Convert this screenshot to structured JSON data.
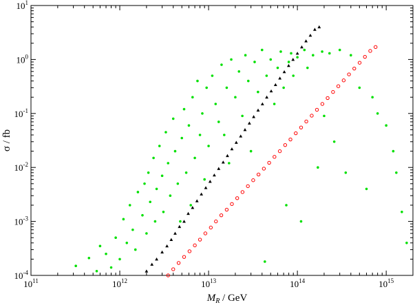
{
  "chart_data": {
    "type": "scatter",
    "title": "",
    "xlabel": "M_R / GeV",
    "xlabel_parts": {
      "symbol": "M",
      "subscript": "R",
      "unit": " / GeV"
    },
    "ylabel": "σ / fb",
    "xscale": "log",
    "yscale": "log",
    "xlim": [
      100000000000.0,
      2000000000000000.0
    ],
    "ylim": [
      0.0001,
      10
    ],
    "grid": false,
    "legend": null,
    "x_ticks": [
      {
        "value": 100000000000.0,
        "base": "10",
        "exp": "11"
      },
      {
        "value": 1000000000000.0,
        "base": "10",
        "exp": "12"
      },
      {
        "value": 10000000000000.0,
        "base": "10",
        "exp": "13"
      },
      {
        "value": 100000000000000.0,
        "base": "10",
        "exp": "14"
      },
      {
        "value": 1000000000000000.0,
        "base": "10",
        "exp": "15"
      }
    ],
    "y_ticks": [
      {
        "value": 0.0001,
        "base": "10",
        "exp": "-4"
      },
      {
        "value": 0.001,
        "base": "10",
        "exp": "-3"
      },
      {
        "value": 0.01,
        "base": "10",
        "exp": "-2"
      },
      {
        "value": 0.1,
        "base": "10",
        "exp": "-1"
      },
      {
        "value": 1.0,
        "base": "10",
        "exp": "0"
      },
      {
        "value": 10.0,
        "base": "10",
        "exp": "1"
      }
    ],
    "series": [
      {
        "marker": "filled-circle",
        "color": "#00e000",
        "points": [
          [
            320000000000.0,
            0.00015
          ],
          [
            450000000000.0,
            0.00021
          ],
          [
            550000000000.0,
            0.00012
          ],
          [
            600000000000.0,
            0.00035
          ],
          [
            700000000000.0,
            0.00025
          ],
          [
            800000000000.0,
            0.00014
          ],
          [
            900000000000.0,
            0.0005
          ],
          [
            1000000000000.0,
            0.0002
          ],
          [
            1100000000000.0,
            0.0011
          ],
          [
            1200000000000.0,
            0.0004
          ],
          [
            1300000000000.0,
            0.002
          ],
          [
            1400000000000.0,
            0.0007
          ],
          [
            1500000000000.0,
            0.0003
          ],
          [
            1600000000000.0,
            0.0035
          ],
          [
            1800000000000.0,
            0.0013
          ],
          [
            1900000000000.0,
            0.005
          ],
          [
            2000000000000.0,
            0.0006
          ],
          [
            2100000000000.0,
            0.008
          ],
          [
            2200000000000.0,
            0.0023
          ],
          [
            2400000000000.0,
            0.015
          ],
          [
            2500000000000.0,
            0.001
          ],
          [
            2600000000000.0,
            0.004
          ],
          [
            2800000000000.0,
            0.025
          ],
          [
            3000000000000.0,
            0.007
          ],
          [
            3100000000000.0,
            0.0015
          ],
          [
            3300000000000.0,
            0.045
          ],
          [
            3500000000000.0,
            0.012
          ],
          [
            3700000000000.0,
            0.003
          ],
          [
            4000000000000.0,
            0.08
          ],
          [
            4200000000000.0,
            0.02
          ],
          [
            4500000000000.0,
            0.005
          ],
          [
            4800000000000.0,
            0.001
          ],
          [
            5000000000000.0,
            0.035
          ],
          [
            5300000000000.0,
            0.12
          ],
          [
            5600000000000.0,
            0.008
          ],
          [
            6000000000000.0,
            0.06
          ],
          [
            6300000000000.0,
            0.002
          ],
          [
            6600000000000.0,
            0.2
          ],
          [
            7000000000000.0,
            0.015
          ],
          [
            7500000000000.0,
            0.4
          ],
          [
            8000000000000.0,
            0.04
          ],
          [
            8500000000000.0,
            0.1
          ],
          [
            9000000000000.0,
            0.006
          ],
          [
            9500000000000.0,
            0.3
          ],
          [
            10000000000000.0,
            0.025
          ],
          [
            11000000000000.0,
            0.5
          ],
          [
            12000000000000.0,
            0.15
          ],
          [
            13000000000000.0,
            0.07
          ],
          [
            14000000000000.0,
            0.8
          ],
          [
            15000000000000.0,
            0.04
          ],
          [
            16000000000000.0,
            0.3
          ],
          [
            17000000000000.0,
            0.012
          ],
          [
            18000000000000.0,
            1.0
          ],
          [
            20000000000000.0,
            0.2
          ],
          [
            22000000000000.0,
            0.6
          ],
          [
            24000000000000.0,
            0.09
          ],
          [
            26000000000000.0,
            1.2
          ],
          [
            28000000000000.0,
            0.4
          ],
          [
            30000000000000.0,
            0.02
          ],
          [
            33000000000000.0,
            0.9
          ],
          [
            36000000000000.0,
            0.25
          ],
          [
            40000000000000.0,
            1.5
          ],
          [
            43000000000000.0,
            0.00018
          ],
          [
            45000000000000.0,
            0.5
          ],
          [
            50000000000000.0,
            1.0
          ],
          [
            55000000000000.0,
            0.15
          ],
          [
            60000000000000.0,
            0.7
          ],
          [
            65000000000000.0,
            1.4
          ],
          [
            70000000000000.0,
            0.3
          ],
          [
            75000000000000.0,
            0.002
          ],
          [
            80000000000000.0,
            0.9
          ],
          [
            85000000000000.0,
            1.3
          ],
          [
            90000000000000.0,
            0.5
          ],
          [
            100000000000000.0,
            1.1
          ],
          [
            110000000000000.0,
            0.001
          ],
          [
            120000000000000.0,
            1.5
          ],
          [
            130000000000000.0,
            0.7
          ],
          [
            150000000000000.0,
            1.2
          ],
          [
            170000000000000.0,
            0.01
          ],
          [
            190000000000000.0,
            1.4
          ],
          [
            200000000000000.0,
            0.09
          ],
          [
            230000000000000.0,
            1.3
          ],
          [
            260000000000000.0,
            0.03
          ],
          [
            300000000000000.0,
            1.5
          ],
          [
            350000000000000.0,
            0.008
          ],
          [
            400000000000000.0,
            1.2
          ],
          [
            500000000000000.0,
            0.3
          ],
          [
            600000000000000.0,
            0.004
          ],
          [
            700000000000000.0,
            0.2
          ],
          [
            800000000000000.0,
            0.1
          ],
          [
            1000000000000000.0,
            0.06
          ],
          [
            1200000000000000.0,
            0.02
          ],
          [
            1300000000000000.0,
            0.008
          ],
          [
            1500000000000000.0,
            0.0015
          ],
          [
            1700000000000000.0,
            0.0004
          ]
        ]
      },
      {
        "marker": "filled-triangle",
        "color": "#000000",
        "points": [
          [
            2000000000000.0,
            0.00012
          ],
          [
            2300000000000.0,
            0.00016
          ],
          [
            2600000000000.0,
            0.0002
          ],
          [
            3000000000000.0,
            0.00027
          ],
          [
            3400000000000.0,
            0.00035
          ],
          [
            3800000000000.0,
            0.00046
          ],
          [
            4200000000000.0,
            0.0006
          ],
          [
            4700000000000.0,
            0.0008
          ],
          [
            5300000000000.0,
            0.001
          ],
          [
            5900000000000.0,
            0.0014
          ],
          [
            6600000000000.0,
            0.0018
          ],
          [
            7400000000000.0,
            0.0024
          ],
          [
            8300000000000.0,
            0.0032
          ],
          [
            9300000000000.0,
            0.0042
          ],
          [
            10400000000000.0,
            0.0055
          ],
          [
            11600000000000.0,
            0.0072
          ],
          [
            13000000000000.0,
            0.0095
          ],
          [
            14600000000000.0,
            0.0125
          ],
          [
            16300000000000.0,
            0.0165
          ],
          [
            18300000000000.0,
            0.022
          ],
          [
            20500000000000.0,
            0.029
          ],
          [
            23000000000000.0,
            0.038
          ],
          [
            25700000000000.0,
            0.05
          ],
          [
            28800000000000.0,
            0.066
          ],
          [
            32200000000000.0,
            0.087
          ],
          [
            36100000000000.0,
            0.115
          ],
          [
            40400000000000.0,
            0.15
          ],
          [
            45200000000000.0,
            0.2
          ],
          [
            50700000000000.0,
            0.26
          ],
          [
            56700000000000.0,
            0.34
          ],
          [
            63500000000000.0,
            0.45
          ],
          [
            71200000000000.0,
            0.59
          ],
          [
            79700000000000.0,
            0.77
          ],
          [
            89300000000000.0,
            1.0
          ],
          [
            100000000000000.0,
            1.3
          ],
          [
            112000000000000.0,
            1.7
          ],
          [
            125000000000000.0,
            2.2
          ],
          [
            140000000000000.0,
            2.8
          ],
          [
            157000000000000.0,
            3.6
          ],
          [
            176000000000000.0,
            4.0
          ]
        ]
      },
      {
        "marker": "open-circle",
        "color": "#ff0000",
        "points": [
          [
            3500000000000.0,
            0.0001
          ],
          [
            4000000000000.0,
            0.00013
          ],
          [
            4600000000000.0,
            0.00017
          ],
          [
            5300000000000.0,
            0.00022
          ],
          [
            6100000000000.0,
            0.00028
          ],
          [
            7000000000000.0,
            0.00036
          ],
          [
            8000000000000.0,
            0.00046
          ],
          [
            9200000000000.0,
            0.0006
          ],
          [
            10600000000000.0,
            0.00077
          ],
          [
            12100000000000.0,
            0.001
          ],
          [
            13900000000000.0,
            0.0013
          ],
          [
            16000000000000.0,
            0.00165
          ],
          [
            18300000000000.0,
            0.0021
          ],
          [
            21000000000000.0,
            0.0027
          ],
          [
            24100000000000.0,
            0.0035
          ],
          [
            27700000000000.0,
            0.0045
          ],
          [
            31800000000000.0,
            0.0058
          ],
          [
            36500000000000.0,
            0.0074
          ],
          [
            41900000000000.0,
            0.0095
          ],
          [
            48100000000000.0,
            0.0122
          ],
          [
            55200000000000.0,
            0.0157
          ],
          [
            63400000000000.0,
            0.02
          ],
          [
            72800000000000.0,
            0.026
          ],
          [
            83500000000000.0,
            0.033
          ],
          [
            95900000000000.0,
            0.043
          ],
          [
            110000000000000.0,
            0.055
          ],
          [
            126000000000000.0,
            0.071
          ],
          [
            145000000000000.0,
            0.091
          ],
          [
            166000000000000.0,
            0.117
          ],
          [
            191000000000000.0,
            0.15
          ],
          [
            219000000000000.0,
            0.193
          ],
          [
            252000000000000.0,
            0.25
          ],
          [
            289000000000000.0,
            0.32
          ],
          [
            332000000000000.0,
            0.41
          ],
          [
            381000000000000.0,
            0.53
          ],
          [
            437000000000000.0,
            0.68
          ],
          [
            502000000000000.0,
            0.87
          ],
          [
            576000000000000.0,
            1.12
          ],
          [
            661000000000000.0,
            1.44
          ],
          [
            759000000000000.0,
            1.7
          ]
        ]
      }
    ]
  }
}
